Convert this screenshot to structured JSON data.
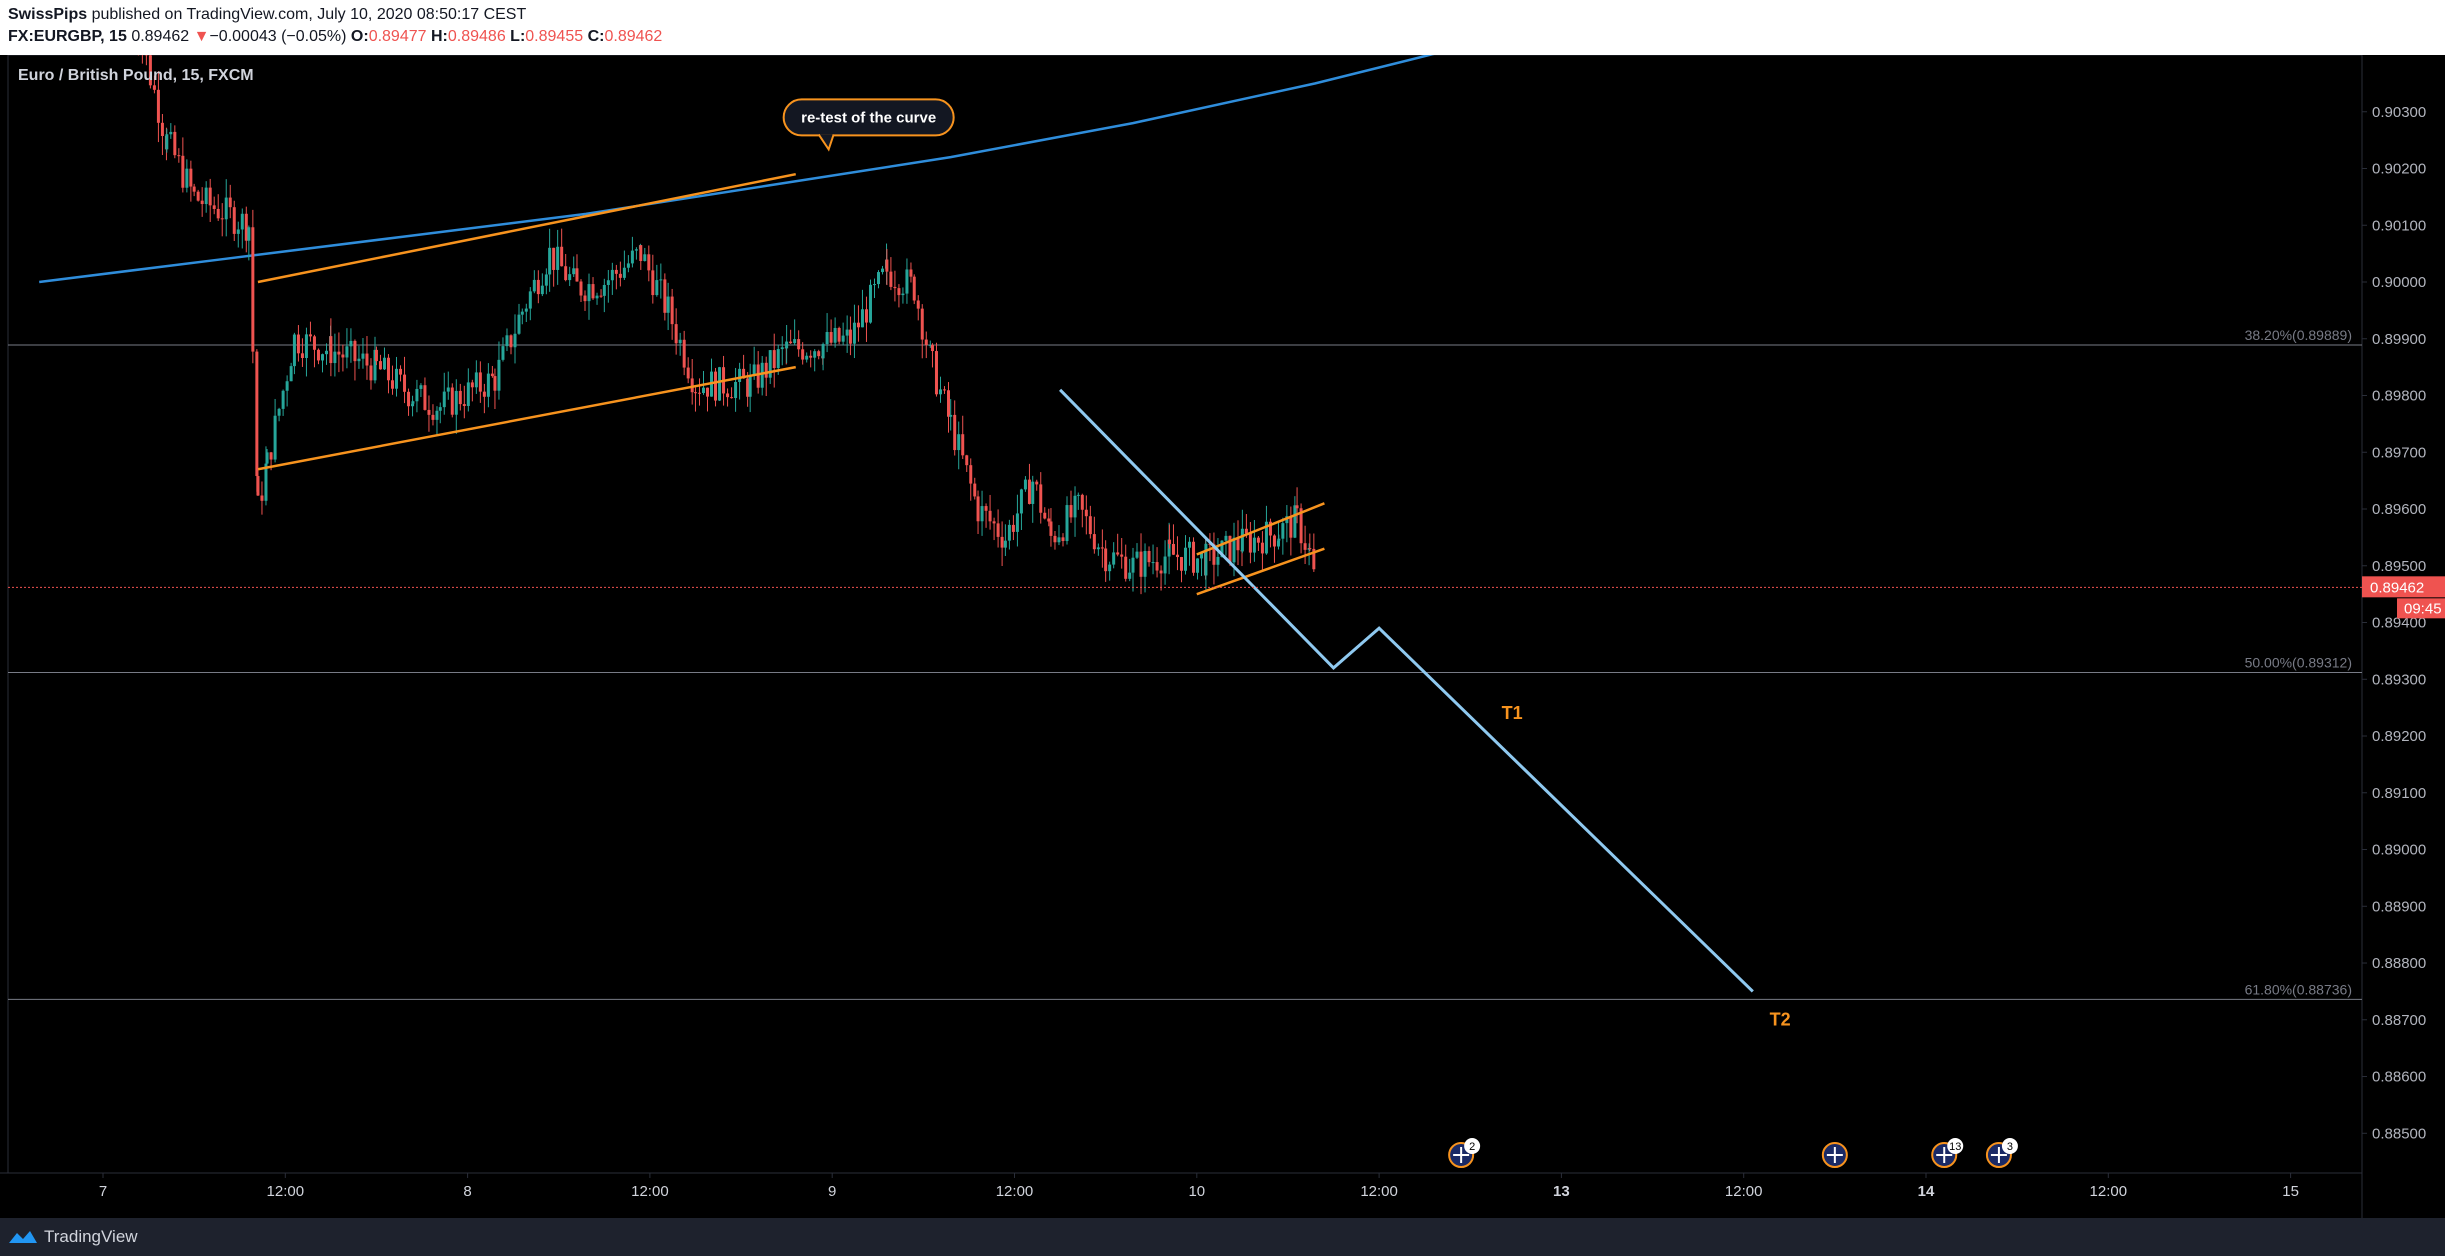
{
  "header": {
    "publisher": "SwissPips",
    "published_text": " published on TradingView.com, July 10, 2020 08:50:17 CEST",
    "symbol": "FX:EURGBP, 15",
    "last": "0.89462",
    "change_arrow": "▼",
    "change": "−0.00043 (−0.05%)",
    "o_label": "O:",
    "o_value": "0.89477",
    "h_label": "H:",
    "h_value": "0.89486",
    "l_label": "L:",
    "l_value": "0.89455",
    "c_label": "C:",
    "c_value": "0.89462"
  },
  "footer": {
    "brand": "TradingView",
    "logo_icon": "tradingview-logo-icon"
  },
  "colors": {
    "background": "#000000",
    "up_candle": "#26a69a",
    "down_candle": "#ef5350",
    "channel": "#f7931e",
    "curve": "#2f8ddb",
    "projection": "#8fc9f0",
    "fib": "#787b86",
    "price_tag": "#ef5350",
    "target": "#f7931e"
  },
  "chart_data": {
    "type": "candlestick",
    "title": "Euro / British Pound, 15, FXCM",
    "ylim": [
      0.8843,
      0.904
    ],
    "y_ticks": [
      "0.90300",
      "0.90200",
      "0.90100",
      "0.90000",
      "0.89900",
      "0.89800",
      "0.89700",
      "0.89600",
      "0.89500",
      "0.89400",
      "0.89300",
      "0.89200",
      "0.89100",
      "0.89000",
      "0.88900",
      "0.88800",
      "0.88700",
      "0.88600",
      "0.88500"
    ],
    "x_ticks": [
      "7",
      "12:00",
      "8",
      "12:00",
      "9",
      "12:00",
      "10",
      "12:00",
      "13",
      "12:00",
      "14",
      "12:00",
      "15"
    ],
    "last_price": "0.89462",
    "countdown": "09:45",
    "fib_levels": [
      {
        "label": "38.20%(0.89889)",
        "value": 0.89889
      },
      {
        "label": "50.00%(0.89312)",
        "value": 0.89312
      },
      {
        "label": "61.80%(0.88736)",
        "value": 0.88736
      }
    ],
    "targets": [
      {
        "label": "T1",
        "x": 8.08,
        "y": 0.8923
      },
      {
        "label": "T2",
        "x": 9.55,
        "y": 0.8869
      }
    ],
    "annotation": {
      "text": "re-test of the curve",
      "x": 4.55,
      "y": 0.9029
    },
    "price_path": [
      [
        0.5,
        0.905
      ],
      [
        0.7,
        0.9025
      ],
      [
        0.85,
        0.9015
      ],
      [
        1.15,
        0.901
      ],
      [
        1.2,
        0.896
      ],
      [
        1.25,
        0.8968
      ],
      [
        1.4,
        0.899
      ],
      [
        1.6,
        0.8988
      ],
      [
        1.85,
        0.8985
      ],
      [
        2.05,
        0.898
      ],
      [
        2.2,
        0.8978
      ],
      [
        2.5,
        0.8983
      ],
      [
        2.65,
        0.8995
      ],
      [
        2.8,
        0.9005
      ],
      [
        2.95,
        0.8999
      ],
      [
        3.1,
        0.9
      ],
      [
        3.3,
        0.9005
      ],
      [
        3.45,
        0.8995
      ],
      [
        3.6,
        0.8982
      ],
      [
        3.9,
        0.8982
      ],
      [
        4.1,
        0.8988
      ],
      [
        4.3,
        0.8989
      ],
      [
        4.45,
        0.899
      ],
      [
        4.65,
        0.9002
      ],
      [
        4.8,
        0.8999
      ],
      [
        4.9,
        0.8985
      ],
      [
        5.0,
        0.8975
      ],
      [
        5.15,
        0.896
      ],
      [
        5.3,
        0.8955
      ],
      [
        5.45,
        0.8965
      ],
      [
        5.55,
        0.8955
      ],
      [
        5.7,
        0.896
      ],
      [
        5.85,
        0.8952
      ],
      [
        6.0,
        0.895
      ],
      [
        6.2,
        0.8952
      ],
      [
        6.4,
        0.8951
      ],
      [
        6.6,
        0.8954
      ],
      [
        6.8,
        0.8956
      ],
      [
        6.9,
        0.8958
      ],
      [
        6.97,
        0.8952
      ],
      [
        7.0,
        0.89462
      ]
    ],
    "channels": [
      {
        "name": "upper-1",
        "from": [
          1.2,
          0.9
        ],
        "to": [
          4.15,
          0.9019
        ]
      },
      {
        "name": "lower-1",
        "from": [
          1.2,
          0.8967
        ],
        "to": [
          4.15,
          0.8985
        ]
      },
      {
        "name": "upper-2",
        "from": [
          6.35,
          0.8952
        ],
        "to": [
          7.05,
          0.8961
        ]
      },
      {
        "name": "lower-2",
        "from": [
          6.35,
          0.8945
        ],
        "to": [
          7.05,
          0.8953
        ]
      }
    ],
    "curve": [
      [
        0.0,
        0.9
      ],
      [
        1.0,
        0.9004
      ],
      [
        2.0,
        0.9008
      ],
      [
        3.0,
        0.9012
      ],
      [
        4.0,
        0.9017
      ],
      [
        5.0,
        0.9022
      ],
      [
        6.0,
        0.9028
      ],
      [
        7.0,
        0.9035
      ],
      [
        8.0,
        0.9043
      ],
      [
        8.3,
        0.9046
      ]
    ],
    "projection": [
      [
        5.6,
        0.8981
      ],
      [
        7.1,
        0.8932
      ],
      [
        7.35,
        0.8939
      ],
      [
        9.4,
        0.8875
      ]
    ],
    "event_markers": [
      {
        "x": 7.8,
        "count": "2"
      },
      {
        "x": 9.85,
        "count": ""
      },
      {
        "x": 10.45,
        "count": "13"
      },
      {
        "x": 10.75,
        "count": "3"
      }
    ]
  }
}
